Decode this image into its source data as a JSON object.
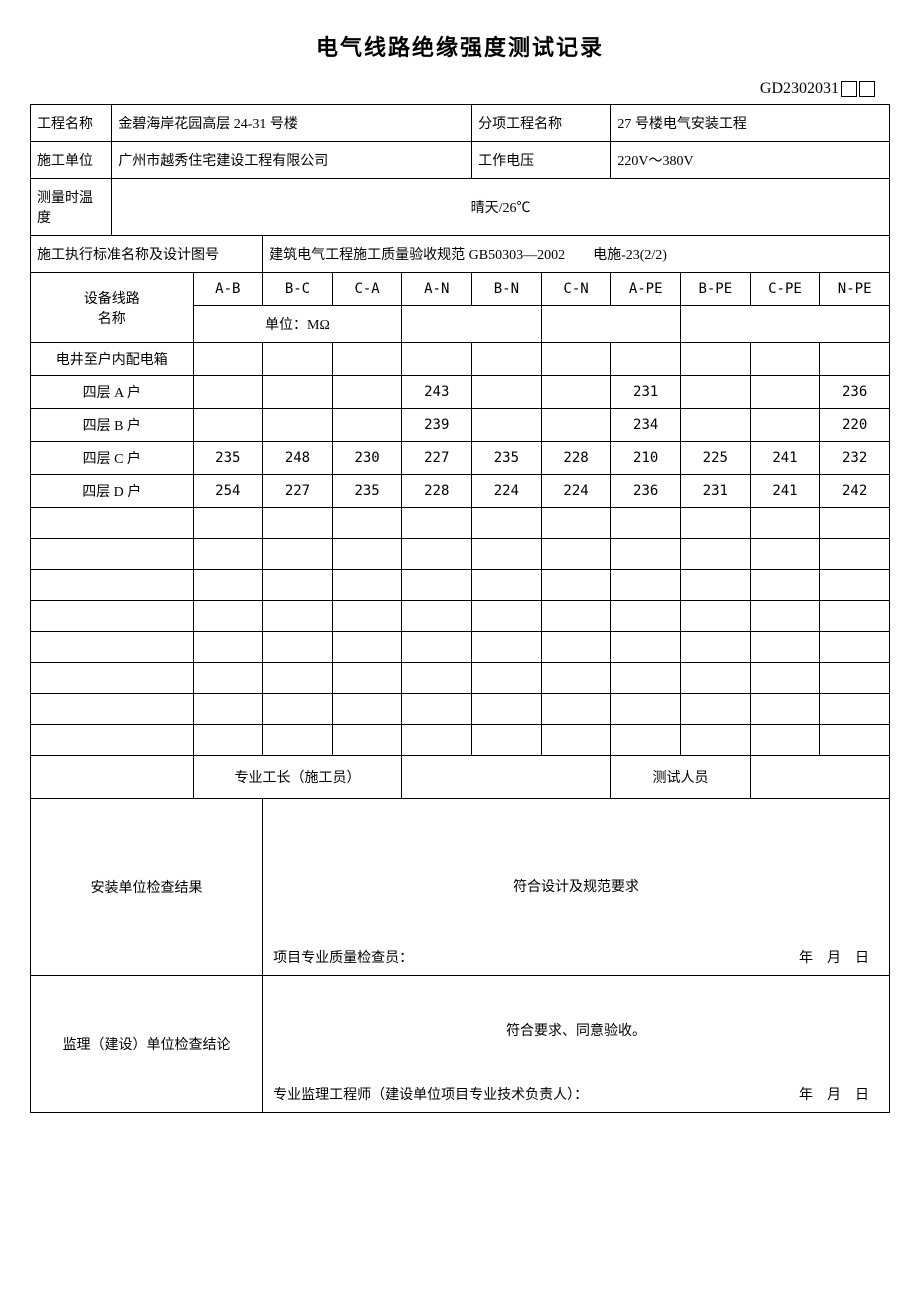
{
  "title": "电气线路绝缘强度测试记录",
  "docNumber": "GD2302031",
  "header": {
    "projectNameLabel": "工程名称",
    "projectName": "金碧海岸花园高层 24-31 号楼",
    "subProjectNameLabel": "分项工程名称",
    "subProjectName": "27 号楼电气安装工程",
    "contractorLabel": "施工单位",
    "contractor": "广州市越秀住宅建设工程有限公司",
    "workingVoltageLabel": "工作电压",
    "workingVoltage": "220V～380V",
    "tempLabel": "测量时温度",
    "tempValue": "晴天/26℃",
    "standardLabel": "施工执行标准名称及设计图号",
    "standardValue": "建筑电气工程施工质量验收规范 GB50303—2002  电施-23(2/2)"
  },
  "columns": {
    "equipmentLabel": "设备线路\n名称",
    "ab": "A-B",
    "bc": "B-C",
    "ca": "C-A",
    "an": "A-N",
    "bn": "B-N",
    "cn": "C-N",
    "ape": "A-PE",
    "bpe": "B-PE",
    "cpe": "C-PE",
    "npe": "N-PE",
    "unitLabel": "单位：MΩ"
  },
  "rows": [
    {
      "name": "电井至户内配电箱",
      "ab": "",
      "bc": "",
      "ca": "",
      "an": "",
      "bn": "",
      "cn": "",
      "ape": "",
      "bpe": "",
      "cpe": "",
      "npe": ""
    },
    {
      "name": "四层 A 户",
      "ab": "",
      "bc": "",
      "ca": "",
      "an": "243",
      "bn": "",
      "cn": "",
      "ape": "231",
      "bpe": "",
      "cpe": "",
      "npe": "236"
    },
    {
      "name": "四层 B 户",
      "ab": "",
      "bc": "",
      "ca": "",
      "an": "239",
      "bn": "",
      "cn": "",
      "ape": "234",
      "bpe": "",
      "cpe": "",
      "npe": "220"
    },
    {
      "name": "四层 C 户",
      "ab": "235",
      "bc": "248",
      "ca": "230",
      "an": "227",
      "bn": "235",
      "cn": "228",
      "ape": "210",
      "bpe": "225",
      "cpe": "241",
      "npe": "232"
    },
    {
      "name": "四层 D 户",
      "ab": "254",
      "bc": "227",
      "ca": "235",
      "an": "228",
      "bn": "224",
      "cn": "224",
      "ape": "236",
      "bpe": "231",
      "cpe": "241",
      "npe": "242"
    }
  ],
  "emptyRowCount": 8,
  "footer": {
    "foremanLabel": "专业工长（施工员）",
    "testerLabel": "测试人员",
    "installCheckLabel": "安装单位检查结果",
    "installCheckResult": "符合设计及规范要求",
    "qcSignLabel": "项目专业质量检查员：",
    "dateLabel": "年 月 日",
    "supervisionLabel": "监理（建设）单位检查结论",
    "supervisionResult": "符合要求、同意验收。",
    "supervisionSignLabel": "专业监理工程师（建设单位项目专业技术负责人）："
  },
  "style": {
    "background": "#ffffff",
    "text": "#000000",
    "border": "#000000",
    "titleFontSize": 22,
    "bodyFontSize": 14
  }
}
